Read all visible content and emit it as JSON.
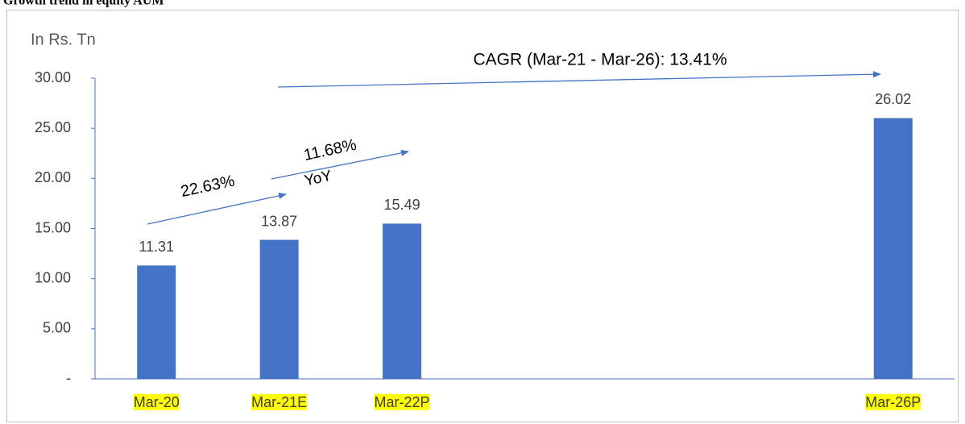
{
  "chart_data": {
    "type": "bar",
    "title": "Growth trend in equity AUM",
    "y_axis_label": "In Rs. Tn",
    "categories": [
      "Mar-20",
      "Mar-21E",
      "Mar-22P",
      null,
      null,
      null,
      "Mar-26P"
    ],
    "values": [
      11.31,
      13.87,
      15.49,
      null,
      null,
      null,
      26.02
    ],
    "color": "#4472c4",
    "ylim": [
      0,
      30
    ],
    "yticks": [
      {
        "value": 0,
        "label": "-"
      },
      {
        "value": 5,
        "label": "5.00"
      },
      {
        "value": 10,
        "label": "10.00"
      },
      {
        "value": 15,
        "label": "15.00"
      },
      {
        "value": 20,
        "label": "20.00"
      },
      {
        "value": 25,
        "label": "25.00"
      },
      {
        "value": 30,
        "label": "30.00"
      }
    ],
    "category_highlight": "#ffff00",
    "annotations": [
      "CAGR (Mar-21 - Mar-26): 13.41%",
      "22.63%",
      "11.68%",
      "YoY"
    ]
  }
}
